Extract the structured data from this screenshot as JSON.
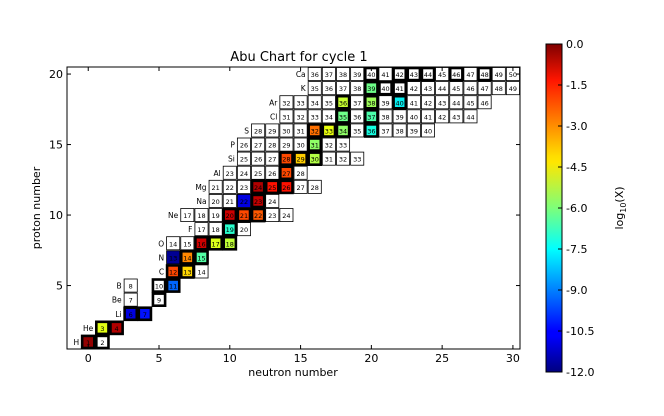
{
  "chart_data": {
    "type": "heatmap",
    "title": "Abu Chart for cycle 1",
    "xlabel": "neutron number",
    "ylabel": "proton number",
    "xlim": [
      -1.5,
      30.5
    ],
    "ylim": [
      0.5,
      20.5
    ],
    "xticks": [
      0,
      5,
      10,
      15,
      20,
      25,
      30
    ],
    "yticks": [
      5,
      10,
      15,
      20
    ],
    "colorbar": {
      "label": "log10(X)",
      "range": [
        -12.0,
        0.0
      ],
      "ticks": [
        "0.0",
        "-1.5",
        "-3.0",
        "-4.5",
        "-6.0",
        "-7.5",
        "-9.0",
        "-10.5",
        "-12.0"
      ],
      "colormap": "jet"
    },
    "element_labels": [
      {
        "z": 1,
        "symbol": "H"
      },
      {
        "z": 2,
        "symbol": "He"
      },
      {
        "z": 3,
        "symbol": "Li"
      },
      {
        "z": 4,
        "symbol": "Be"
      },
      {
        "z": 5,
        "symbol": "B"
      },
      {
        "z": 6,
        "symbol": "C"
      },
      {
        "z": 7,
        "symbol": "N"
      },
      {
        "z": 8,
        "symbol": "O"
      },
      {
        "z": 9,
        "symbol": "F"
      },
      {
        "z": 10,
        "symbol": "Ne"
      },
      {
        "z": 11,
        "symbol": "Na"
      },
      {
        "z": 12,
        "symbol": "Mg"
      },
      {
        "z": 13,
        "symbol": "Al"
      },
      {
        "z": 14,
        "symbol": "Si"
      },
      {
        "z": 15,
        "symbol": "P"
      },
      {
        "z": 16,
        "symbol": "S"
      },
      {
        "z": 17,
        "symbol": "Cl"
      },
      {
        "z": 18,
        "symbol": "Ar"
      },
      {
        "z": 19,
        "symbol": "K"
      },
      {
        "z": 20,
        "symbol": "Ca"
      }
    ],
    "isotopes": [
      {
        "z": 1,
        "n": 0,
        "a": "1",
        "log": -0.2,
        "stable": true
      },
      {
        "z": 1,
        "n": 1,
        "a": "2",
        "stable": true
      },
      {
        "z": 2,
        "n": 1,
        "a": "3",
        "log": -4.5,
        "stable": true
      },
      {
        "z": 2,
        "n": 2,
        "a": "4",
        "log": -0.5,
        "stable": true
      },
      {
        "z": 3,
        "n": 3,
        "a": "6",
        "log": -11.0,
        "stable": true
      },
      {
        "z": 3,
        "n": 4,
        "a": "7",
        "log": -10.3,
        "stable": true
      },
      {
        "z": 4,
        "n": 3,
        "a": "7"
      },
      {
        "z": 4,
        "n": 5,
        "a": "9",
        "stable": true
      },
      {
        "z": 5,
        "n": 3,
        "a": "8"
      },
      {
        "z": 5,
        "n": 5,
        "a": "10",
        "stable": true
      },
      {
        "z": 5,
        "n": 6,
        "a": "11",
        "log": -9.3,
        "stable": true
      },
      {
        "z": 6,
        "n": 6,
        "a": "12",
        "log": -2.0,
        "stable": true
      },
      {
        "z": 6,
        "n": 7,
        "a": "13",
        "log": -3.8,
        "stable": true
      },
      {
        "z": 6,
        "n": 8,
        "a": "14"
      },
      {
        "z": 7,
        "n": 6,
        "a": "13",
        "log": -11.8
      },
      {
        "z": 7,
        "n": 7,
        "a": "14",
        "log": -2.8,
        "stable": true
      },
      {
        "z": 7,
        "n": 8,
        "a": "15",
        "log": -6.6,
        "stable": true
      },
      {
        "z": 8,
        "n": 6,
        "a": "14"
      },
      {
        "z": 8,
        "n": 7,
        "a": "15"
      },
      {
        "z": 8,
        "n": 8,
        "a": "16",
        "log": -0.8,
        "stable": true
      },
      {
        "z": 8,
        "n": 9,
        "a": "17",
        "log": -4.6,
        "stable": true
      },
      {
        "z": 8,
        "n": 10,
        "a": "18",
        "log": -5.0,
        "stable": true
      },
      {
        "z": 9,
        "n": 8,
        "a": "17"
      },
      {
        "z": 9,
        "n": 9,
        "a": "18"
      },
      {
        "z": 9,
        "n": 10,
        "a": "19",
        "log": -7.2,
        "stable": true
      },
      {
        "z": 9,
        "n": 11,
        "a": "20"
      },
      {
        "z": 10,
        "n": 7,
        "a": "17"
      },
      {
        "z": 10,
        "n": 8,
        "a": "18"
      },
      {
        "z": 10,
        "n": 9,
        "a": "19"
      },
      {
        "z": 10,
        "n": 10,
        "a": "20",
        "log": -0.8,
        "stable": true
      },
      {
        "z": 10,
        "n": 11,
        "a": "21",
        "log": -2.0,
        "stable": true
      },
      {
        "z": 10,
        "n": 12,
        "a": "22",
        "log": -2.2,
        "stable": true
      },
      {
        "z": 10,
        "n": 13,
        "a": "23"
      },
      {
        "z": 10,
        "n": 14,
        "a": "24"
      },
      {
        "z": 11,
        "n": 9,
        "a": "20"
      },
      {
        "z": 11,
        "n": 10,
        "a": "21"
      },
      {
        "z": 11,
        "n": 11,
        "a": "22",
        "log": -11.0
      },
      {
        "z": 11,
        "n": 12,
        "a": "23",
        "log": -0.7,
        "stable": true
      },
      {
        "z": 11,
        "n": 13,
        "a": "24"
      },
      {
        "z": 12,
        "n": 9,
        "a": "21"
      },
      {
        "z": 12,
        "n": 10,
        "a": "22"
      },
      {
        "z": 12,
        "n": 11,
        "a": "23"
      },
      {
        "z": 12,
        "n": 12,
        "a": "24",
        "log": -0.5,
        "stable": true
      },
      {
        "z": 12,
        "n": 13,
        "a": "25",
        "log": -1.3,
        "stable": true
      },
      {
        "z": 12,
        "n": 14,
        "a": "26",
        "log": -1.3,
        "stable": true
      },
      {
        "z": 12,
        "n": 15,
        "a": "27"
      },
      {
        "z": 12,
        "n": 16,
        "a": "28"
      },
      {
        "z": 13,
        "n": 10,
        "a": "23"
      },
      {
        "z": 13,
        "n": 11,
        "a": "24"
      },
      {
        "z": 13,
        "n": 12,
        "a": "25"
      },
      {
        "z": 13,
        "n": 13,
        "a": "26"
      },
      {
        "z": 13,
        "n": 14,
        "a": "27",
        "log": -2.0,
        "stable": true
      },
      {
        "z": 13,
        "n": 15,
        "a": "28"
      },
      {
        "z": 14,
        "n": 11,
        "a": "25"
      },
      {
        "z": 14,
        "n": 12,
        "a": "26"
      },
      {
        "z": 14,
        "n": 13,
        "a": "27"
      },
      {
        "z": 14,
        "n": 14,
        "a": "28",
        "log": -2.0,
        "stable": true
      },
      {
        "z": 14,
        "n": 15,
        "a": "29",
        "log": -3.7,
        "stable": true
      },
      {
        "z": 14,
        "n": 16,
        "a": "30",
        "log": -5.2,
        "stable": true
      },
      {
        "z": 14,
        "n": 17,
        "a": "31"
      },
      {
        "z": 14,
        "n": 18,
        "a": "32"
      },
      {
        "z": 14,
        "n": 19,
        "a": "33"
      },
      {
        "z": 15,
        "n": 11,
        "a": "26"
      },
      {
        "z": 15,
        "n": 12,
        "a": "27"
      },
      {
        "z": 15,
        "n": 13,
        "a": "28"
      },
      {
        "z": 15,
        "n": 14,
        "a": "29"
      },
      {
        "z": 15,
        "n": 15,
        "a": "30"
      },
      {
        "z": 15,
        "n": 16,
        "a": "31",
        "log": -5.7,
        "stable": true
      },
      {
        "z": 15,
        "n": 17,
        "a": "32"
      },
      {
        "z": 15,
        "n": 18,
        "a": "33"
      },
      {
        "z": 16,
        "n": 12,
        "a": "28"
      },
      {
        "z": 16,
        "n": 13,
        "a": "29"
      },
      {
        "z": 16,
        "n": 14,
        "a": "30"
      },
      {
        "z": 16,
        "n": 15,
        "a": "31"
      },
      {
        "z": 16,
        "n": 16,
        "a": "32",
        "log": -2.5,
        "stable": true
      },
      {
        "z": 16,
        "n": 17,
        "a": "33",
        "log": -4.4,
        "stable": true
      },
      {
        "z": 16,
        "n": 18,
        "a": "34",
        "log": -5.7,
        "stable": true
      },
      {
        "z": 16,
        "n": 19,
        "a": "35"
      },
      {
        "z": 16,
        "n": 20,
        "a": "36",
        "log": -7.5,
        "stable": true
      },
      {
        "z": 16,
        "n": 21,
        "a": "37"
      },
      {
        "z": 16,
        "n": 22,
        "a": "38"
      },
      {
        "z": 16,
        "n": 23,
        "a": "39"
      },
      {
        "z": 16,
        "n": 24,
        "a": "40"
      },
      {
        "z": 17,
        "n": 14,
        "a": "31"
      },
      {
        "z": 17,
        "n": 15,
        "a": "32"
      },
      {
        "z": 17,
        "n": 16,
        "a": "33"
      },
      {
        "z": 17,
        "n": 17,
        "a": "34"
      },
      {
        "z": 17,
        "n": 18,
        "a": "35",
        "log": -6.2,
        "stable": true
      },
      {
        "z": 17,
        "n": 19,
        "a": "36"
      },
      {
        "z": 17,
        "n": 20,
        "a": "37",
        "log": -6.7,
        "stable": true
      },
      {
        "z": 17,
        "n": 21,
        "a": "38"
      },
      {
        "z": 17,
        "n": 22,
        "a": "39"
      },
      {
        "z": 17,
        "n": 23,
        "a": "40"
      },
      {
        "z": 17,
        "n": 24,
        "a": "41"
      },
      {
        "z": 17,
        "n": 25,
        "a": "42"
      },
      {
        "z": 17,
        "n": 26,
        "a": "43"
      },
      {
        "z": 17,
        "n": 27,
        "a": "44"
      },
      {
        "z": 18,
        "n": 14,
        "a": "32"
      },
      {
        "z": 18,
        "n": 15,
        "a": "33"
      },
      {
        "z": 18,
        "n": 16,
        "a": "34"
      },
      {
        "z": 18,
        "n": 17,
        "a": "35"
      },
      {
        "z": 18,
        "n": 18,
        "a": "36",
        "log": -4.9,
        "stable": true
      },
      {
        "z": 18,
        "n": 19,
        "a": "37"
      },
      {
        "z": 18,
        "n": 20,
        "a": "38",
        "log": -5.5,
        "stable": true
      },
      {
        "z": 18,
        "n": 21,
        "a": "39"
      },
      {
        "z": 18,
        "n": 22,
        "a": "40",
        "log": -7.7,
        "stable": true
      },
      {
        "z": 18,
        "n": 23,
        "a": "41"
      },
      {
        "z": 18,
        "n": 24,
        "a": "42"
      },
      {
        "z": 18,
        "n": 25,
        "a": "43"
      },
      {
        "z": 18,
        "n": 26,
        "a": "44"
      },
      {
        "z": 18,
        "n": 27,
        "a": "45"
      },
      {
        "z": 18,
        "n": 28,
        "a": "46"
      },
      {
        "z": 19,
        "n": 16,
        "a": "35"
      },
      {
        "z": 19,
        "n": 17,
        "a": "36"
      },
      {
        "z": 19,
        "n": 18,
        "a": "37"
      },
      {
        "z": 19,
        "n": 19,
        "a": "38"
      },
      {
        "z": 19,
        "n": 20,
        "a": "39",
        "log": -6.2,
        "stable": true
      },
      {
        "z": 19,
        "n": 21,
        "a": "40",
        "stable": true
      },
      {
        "z": 19,
        "n": 22,
        "a": "41",
        "stable": true
      },
      {
        "z": 19,
        "n": 23,
        "a": "42"
      },
      {
        "z": 19,
        "n": 24,
        "a": "43"
      },
      {
        "z": 19,
        "n": 25,
        "a": "44"
      },
      {
        "z": 19,
        "n": 26,
        "a": "45"
      },
      {
        "z": 19,
        "n": 27,
        "a": "46"
      },
      {
        "z": 19,
        "n": 28,
        "a": "47"
      },
      {
        "z": 19,
        "n": 29,
        "a": "48"
      },
      {
        "z": 19,
        "n": 30,
        "a": "49"
      },
      {
        "z": 20,
        "n": 16,
        "a": "36"
      },
      {
        "z": 20,
        "n": 17,
        "a": "37"
      },
      {
        "z": 20,
        "n": 18,
        "a": "38"
      },
      {
        "z": 20,
        "n": 19,
        "a": "39"
      },
      {
        "z": 20,
        "n": 20,
        "a": "40",
        "stable": true
      },
      {
        "z": 20,
        "n": 21,
        "a": "41"
      },
      {
        "z": 20,
        "n": 22,
        "a": "42",
        "stable": true
      },
      {
        "z": 20,
        "n": 23,
        "a": "43",
        "stable": true
      },
      {
        "z": 20,
        "n": 24,
        "a": "44",
        "stable": true
      },
      {
        "z": 20,
        "n": 25,
        "a": "45"
      },
      {
        "z": 20,
        "n": 26,
        "a": "46",
        "stable": true
      },
      {
        "z": 20,
        "n": 27,
        "a": "47"
      },
      {
        "z": 20,
        "n": 28,
        "a": "48",
        "stable": true
      },
      {
        "z": 20,
        "n": 29,
        "a": "49"
      },
      {
        "z": 20,
        "n": 30,
        "a": "50"
      }
    ]
  }
}
